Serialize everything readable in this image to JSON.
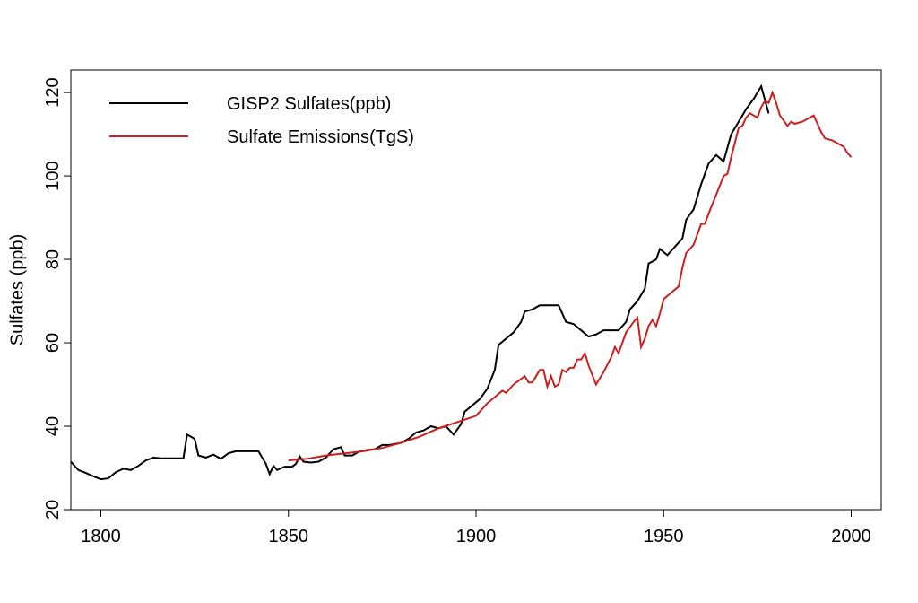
{
  "chart_data": {
    "type": "line",
    "y_label": "Sulfates (ppb)",
    "xlim": [
      1792,
      2008
    ],
    "ylim": [
      20,
      125.4
    ],
    "xticks": [
      1800,
      1850,
      1900,
      1950,
      2000
    ],
    "yticks": [
      20,
      40,
      60,
      80,
      100,
      120
    ],
    "legend": "top-left",
    "series": [
      {
        "name": "GISP2 Sulfates(ppb)",
        "color": "#000000",
        "x": [
          1792,
          1794,
          1796,
          1798,
          1800,
          1802,
          1804,
          1806,
          1808,
          1810,
          1812,
          1814,
          1816,
          1818,
          1820,
          1822,
          1823,
          1825,
          1826,
          1828,
          1830,
          1832,
          1834,
          1836,
          1838,
          1840,
          1842,
          1844,
          1845,
          1846,
          1847,
          1849,
          1851,
          1852,
          1853,
          1854,
          1856,
          1858,
          1860,
          1862,
          1864,
          1865,
          1867,
          1869,
          1871,
          1873,
          1875,
          1877,
          1880,
          1882,
          1884,
          1886,
          1888,
          1890,
          1892,
          1894,
          1896,
          1897,
          1899,
          1901,
          1903,
          1905,
          1906,
          1908,
          1910,
          1912,
          1913,
          1915,
          1917,
          1919,
          1921,
          1922,
          1924,
          1926,
          1928,
          1930,
          1932,
          1934,
          1936,
          1938,
          1940,
          1941,
          1943,
          1945,
          1946,
          1948,
          1949,
          1951,
          1953,
          1955,
          1956,
          1958,
          1960,
          1962,
          1964,
          1966,
          1968,
          1970,
          1972,
          1974,
          1976,
          1978
        ],
        "values": [
          31.5,
          29.5,
          28.8,
          28,
          27.3,
          27.5,
          29,
          29.8,
          29.5,
          30.5,
          31.8,
          32.5,
          32.3,
          32.3,
          32.3,
          32.3,
          38,
          37,
          33,
          32.5,
          33.2,
          32.2,
          33.5,
          34,
          34,
          34,
          34,
          31,
          28.5,
          30.5,
          29.5,
          30.3,
          30.3,
          31,
          32.8,
          31.5,
          31.3,
          31.5,
          32.5,
          34.5,
          35,
          33,
          33,
          34,
          34.3,
          34.5,
          35.5,
          35.5,
          36,
          37,
          38.5,
          39,
          40,
          39.5,
          40,
          38,
          40.5,
          43.5,
          45,
          46.5,
          49,
          53.5,
          59.5,
          61,
          62.5,
          65,
          67.5,
          68,
          69,
          69,
          69,
          69,
          65,
          64.5,
          63,
          61.5,
          62,
          63,
          63,
          63,
          65,
          68,
          70,
          73,
          79,
          80,
          82.5,
          81,
          83,
          85,
          89.5,
          92,
          98,
          103,
          105,
          103.5,
          110,
          113,
          116,
          118.5,
          121.5,
          115
        ]
      },
      {
        "name": "Sulfate Emissions(TgS)",
        "color": "#cc1f1f",
        "x": [
          1850,
          1855,
          1860,
          1865,
          1870,
          1875,
          1880,
          1885,
          1890,
          1895,
          1900,
          1903,
          1905,
          1907,
          1908,
          1910,
          1913,
          1914,
          1915,
          1917,
          1918,
          1919,
          1920,
          1921,
          1922,
          1923,
          1924,
          1925,
          1926,
          1927,
          1928,
          1929,
          1930,
          1932,
          1934,
          1936,
          1937,
          1938,
          1940,
          1942,
          1943,
          1944,
          1945,
          1946,
          1947,
          1948,
          1949,
          1950,
          1952,
          1954,
          1955,
          1956,
          1957,
          1958,
          1959,
          1960,
          1961,
          1962,
          1964,
          1966,
          1967,
          1968,
          1970,
          1971,
          1972,
          1973,
          1975,
          1976,
          1977,
          1978,
          1979,
          1980,
          1981,
          1983,
          1984,
          1985,
          1987,
          1990,
          1991,
          1992,
          1993,
          1995,
          1998,
          1999,
          2000
        ],
        "values": [
          31.8,
          32.2,
          33,
          33.5,
          34,
          34.8,
          36,
          37.5,
          39.5,
          41,
          42.5,
          45.5,
          47,
          48.5,
          48,
          50,
          52,
          50.5,
          50.5,
          53.5,
          53.5,
          49.5,
          52,
          49.5,
          50,
          53.5,
          53,
          54,
          54,
          56,
          56,
          57.5,
          54.5,
          50,
          53,
          56.5,
          59,
          57.5,
          62.5,
          65,
          66,
          59,
          61,
          64,
          65.5,
          64,
          67,
          70.5,
          72,
          73.5,
          78,
          81.5,
          82.5,
          83.5,
          86,
          88.5,
          88.5,
          91,
          95.5,
          100,
          100.5,
          104.5,
          111.5,
          112,
          114,
          115,
          114,
          116.5,
          118,
          117.5,
          120,
          117.5,
          114.5,
          112,
          113,
          112.5,
          113,
          114.5,
          112.5,
          110.5,
          109,
          108.5,
          107,
          105.5,
          104.5
        ]
      }
    ]
  }
}
